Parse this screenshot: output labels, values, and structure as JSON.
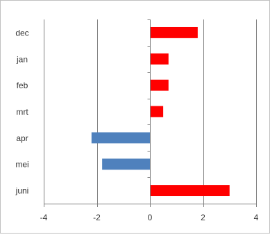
{
  "chart_data": {
    "type": "bar",
    "orientation": "horizontal",
    "categories": [
      "dec",
      "jan",
      "feb",
      "mrt",
      "apr",
      "mei",
      "juni"
    ],
    "values": [
      1.8,
      0.7,
      0.7,
      0.5,
      -2.2,
      -1.8,
      3.0
    ],
    "xlim": [
      -4,
      4
    ],
    "xticks": [
      "-4",
      "-2",
      "0",
      "2",
      "4"
    ],
    "grid": "vertical major gridlines",
    "legend": "none",
    "colors": {
      "positive": "#ff0000",
      "negative": "#4f81bd",
      "grid": "#808080",
      "axis": "#808080",
      "border": "#c0c0c0"
    }
  }
}
